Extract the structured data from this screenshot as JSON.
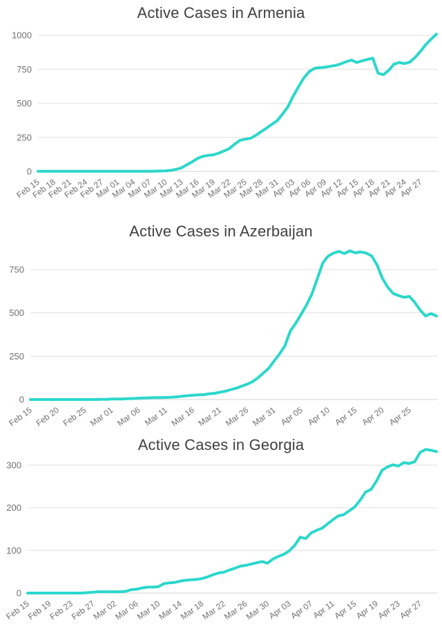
{
  "colors": {
    "line": "#2bd7cc",
    "title_text": "#3f3f3f",
    "tick_text": "#6f6f6f",
    "gridline": "#e6e6e6",
    "zero_line": "#dcdcdc",
    "background": "#ffffff"
  },
  "chart_data": [
    {
      "type": "line",
      "title": "Active Cases in Armenia",
      "line_color": "#2bd7cc",
      "grid": true,
      "legend": "none",
      "xlabel": "",
      "ylabel": "",
      "y_ticks": [
        0,
        250,
        500,
        750,
        1000
      ],
      "ylim": [
        0,
        1030
      ],
      "x_tick_step_days": 3,
      "x_tick_labels": [
        "Feb 15",
        "Feb 18",
        "Feb 21",
        "Feb 24",
        "Feb 27",
        "Mar 01",
        "Mar 04",
        "Mar 07",
        "Mar 10",
        "Mar 13",
        "Mar 16",
        "Mar 19",
        "Mar 22",
        "Mar 25",
        "Mar 28",
        "Mar 31",
        "Apr 03",
        "Apr 06",
        "Apr 09",
        "Apr 12",
        "Apr 15",
        "Apr 18",
        "Apr 21",
        "Apr 24",
        "Apr 27"
      ],
      "x_range_note": "daily values starting Feb 15",
      "values": [
        1,
        1,
        1,
        1,
        1,
        1,
        1,
        1,
        1,
        1,
        1,
        1,
        1,
        1,
        1,
        1,
        1,
        1,
        1,
        1,
        1,
        1,
        2,
        3,
        4,
        8,
        15,
        26,
        48,
        70,
        95,
        110,
        118,
        122,
        134,
        150,
        168,
        200,
        228,
        237,
        243,
        265,
        292,
        318,
        345,
        372,
        420,
        472,
        550,
        620,
        685,
        732,
        757,
        762,
        765,
        772,
        778,
        790,
        805,
        818,
        800,
        812,
        822,
        832,
        722,
        710,
        742,
        788,
        800,
        792,
        803,
        838,
        882,
        932,
        972,
        1008
      ]
    },
    {
      "type": "line",
      "title": "Active Cases in Azerbaijan",
      "line_color": "#2bd7cc",
      "grid": true,
      "legend": "none",
      "xlabel": "",
      "ylabel": "",
      "y_ticks": [
        0,
        250,
        500,
        750
      ],
      "ylim": [
        0,
        870
      ],
      "x_tick_step_days": 5,
      "x_tick_labels": [
        "Feb 15",
        "Feb 20",
        "Feb 25",
        "Mar 01",
        "Mar 06",
        "Mar 11",
        "Mar 16",
        "Mar 21",
        "Mar 26",
        "Mar 31",
        "Apr 05",
        "Apr 10",
        "Apr 15",
        "Apr 20",
        "Apr 25"
      ],
      "x_range_note": "daily values starting Feb 15",
      "values": [
        0,
        0,
        0,
        0,
        0,
        0,
        0,
        0,
        0,
        0,
        0,
        0,
        0,
        1,
        1,
        3,
        3,
        3,
        5,
        6,
        8,
        9,
        10,
        11,
        11,
        12,
        13,
        15,
        19,
        22,
        25,
        27,
        28,
        33,
        36,
        42,
        48,
        57,
        65,
        77,
        88,
        102,
        125,
        152,
        180,
        222,
        262,
        310,
        395,
        440,
        492,
        545,
        610,
        698,
        788,
        828,
        845,
        855,
        842,
        858,
        846,
        852,
        845,
        830,
        778,
        700,
        648,
        612,
        600,
        590,
        595,
        560,
        515,
        482,
        496,
        482
      ]
    },
    {
      "type": "line",
      "title": "Active Cases in Georgia",
      "line_color": "#2bd7cc",
      "grid": true,
      "legend": "none",
      "xlabel": "",
      "ylabel": "",
      "y_ticks": [
        0,
        100,
        200,
        300
      ],
      "ylim": [
        0,
        340
      ],
      "x_tick_step_days": 4,
      "x_tick_labels": [
        "Feb 15",
        "Feb 19",
        "Feb 23",
        "Feb 27",
        "Mar 02",
        "Mar 06",
        "Mar 10",
        "Mar 14",
        "Mar 18",
        "Mar 22",
        "Mar 26",
        "Mar 30",
        "Apr 03",
        "Apr 07",
        "Apr 11",
        "Apr 15",
        "Apr 19",
        "Apr 23",
        "Apr 27"
      ],
      "x_range_note": "daily values starting Feb 15",
      "values": [
        0,
        0,
        0,
        0,
        0,
        0,
        0,
        0,
        0,
        0,
        0,
        1,
        2,
        3,
        3,
        3,
        3,
        3,
        4,
        8,
        9,
        12,
        14,
        14,
        15,
        22,
        24,
        25,
        28,
        30,
        31,
        32,
        34,
        38,
        43,
        47,
        49,
        54,
        58,
        63,
        65,
        68,
        71,
        74,
        70,
        80,
        86,
        91,
        99,
        112,
        131,
        128,
        141,
        147,
        152,
        162,
        172,
        181,
        184,
        193,
        202,
        218,
        237,
        243,
        263,
        288,
        296,
        301,
        298,
        306,
        304,
        308,
        330,
        337,
        335,
        332
      ]
    }
  ]
}
